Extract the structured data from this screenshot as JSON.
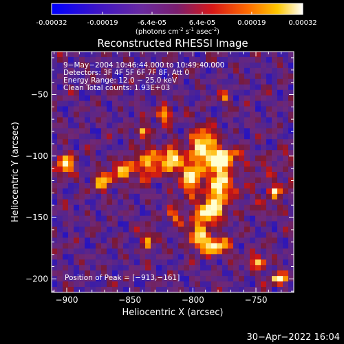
{
  "colorbar": {
    "ticks": [
      "-0.00032",
      "-0.00019",
      "-6.4e-05",
      "6.4e-05",
      "0.00019",
      "0.00032"
    ],
    "tick_values": [
      -0.00032,
      -0.00019,
      -6.4e-05,
      6.4e-05,
      0.00019,
      0.00032
    ],
    "unit_main": "(photons cm",
    "unit_sup1": "-2",
    "unit_s": " s",
    "unit_sup2": "-1",
    "unit_asec": " asec",
    "unit_sup3": "-2",
    "unit_close": ")"
  },
  "chart_data": {
    "type": "heatmap",
    "title": "Reconstructed RHESSI Image",
    "xlabel": "Heliocentric X (arcsec)",
    "ylabel": "Heliocentric Y (arcsec)",
    "xlim": [
      -912,
      -720
    ],
    "ylim": [
      -211,
      -15
    ],
    "x_ticks": [
      -900,
      -850,
      -800,
      -750
    ],
    "x_tick_labels": [
      "−900",
      "−850",
      "−800",
      "−750"
    ],
    "y_ticks": [
      -50,
      -100,
      -150,
      -200
    ],
    "y_tick_labels": [
      "−50",
      "−100",
      "−150",
      "−200"
    ],
    "value_range": [
      -0.00032,
      0.00032
    ],
    "colormap": "blue-purple-red-yellow-white",
    "annotations": {
      "time": "9−May−2004 10:46:44.000 to 10:49:40.000",
      "detectors": "Detectors: 3F 4F 5F 6F 7F 8F, Att 0",
      "energy": "Energy Range: 12.0 − 25.0 keV",
      "clean": "Clean     Total counts: 1.93E+03",
      "peak": "Position of Peak = [−913,−161]"
    }
  },
  "footer": {
    "date": "30−Apr−2022 16:04"
  }
}
